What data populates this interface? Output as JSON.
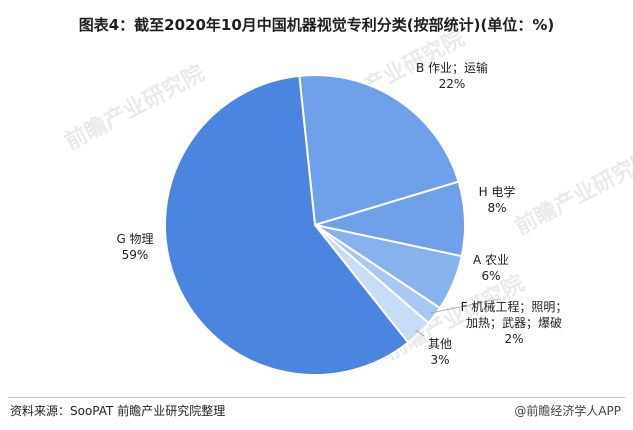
{
  "title": "图表4：截至2020年10月中国机器视觉专利分类(按部统计)(单位：%)",
  "source": "资料来源：SooPAT 前瞻产业研究院整理",
  "brand": "@前瞻经济学人APP",
  "watermark": "前瞻产业研究院",
  "colors": {
    "slice_dark": "#4a86e0",
    "slice_mid": "#6ea1ea",
    "slice_light": "#86b2ee",
    "slice_lighter": "#a6c8f3",
    "slice_lightest": "#c7dcf7",
    "border": "#ffffff"
  },
  "chart_data": {
    "type": "pie",
    "unit": "%",
    "slices": [
      {
        "label_lines": [
          "B 作业；运输"
        ],
        "value": 22,
        "value_label": "22%",
        "color": "#6ea1ea"
      },
      {
        "label_lines": [
          "H 电学"
        ],
        "value": 8,
        "value_label": "8%",
        "color": "#6ea1ea"
      },
      {
        "label_lines": [
          "A 农业"
        ],
        "value": 6,
        "value_label": "6%",
        "color": "#86b2ee"
      },
      {
        "label_lines": [
          "F 机械工程；照明；",
          "加热；武器；爆破"
        ],
        "value": 2,
        "value_label": "2%",
        "color": "#a6c8f3"
      },
      {
        "label_lines": [
          "其他"
        ],
        "value": 3,
        "value_label": "3%",
        "color": "#c7dcf7"
      },
      {
        "label_lines": [
          "G 物理"
        ],
        "value": 59,
        "value_label": "59%",
        "color": "#4a86e0"
      }
    ]
  }
}
